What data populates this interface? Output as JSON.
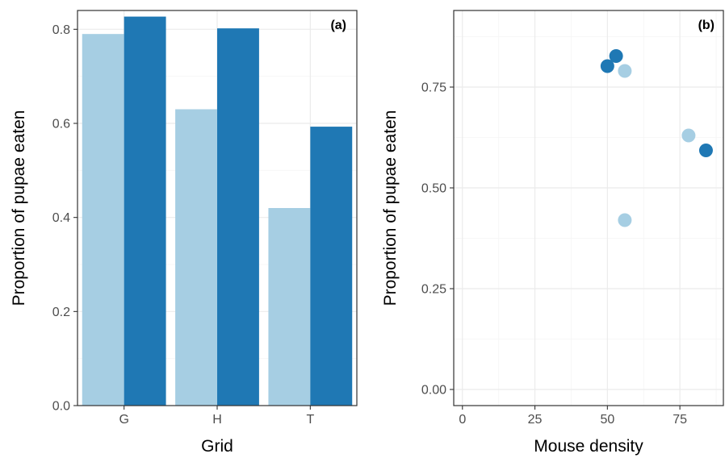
{
  "chart_data": [
    {
      "type": "bar",
      "panel_label": "(a)",
      "xlabel": "Grid",
      "ylabel": "Proportion of pupae eaten",
      "categories": [
        "G",
        "H",
        "T"
      ],
      "series": [
        {
          "values": [
            0.79,
            0.63,
            0.42
          ],
          "color": "#a6cee3"
        },
        {
          "values": [
            0.827,
            0.802,
            0.593
          ],
          "color": "#1f78b4"
        }
      ],
      "ylim": [
        0,
        0.84
      ],
      "yticks": [
        0.0,
        0.2,
        0.4,
        0.6,
        0.8
      ],
      "ytick_labels": [
        "0.0",
        "0.2",
        "0.4",
        "0.6",
        "0.8"
      ],
      "grid": true
    },
    {
      "type": "scatter",
      "panel_label": "(b)",
      "xlabel": "Mouse density",
      "ylabel": "Proportion of pupae eaten",
      "series": [
        {
          "points": [
            [
              56,
              0.79
            ],
            [
              78,
              0.63
            ],
            [
              56,
              0.42
            ]
          ],
          "color": "#a6cee3"
        },
        {
          "points": [
            [
              50,
              0.802
            ],
            [
              53,
              0.827
            ],
            [
              84,
              0.593
            ]
          ],
          "color": "#1f78b4"
        }
      ],
      "xlim": [
        -3,
        90
      ],
      "ylim": [
        -0.04,
        0.94
      ],
      "xticks": [
        0,
        25,
        50,
        75
      ],
      "xtick_labels": [
        "0",
        "25",
        "50",
        "75"
      ],
      "yticks": [
        0.0,
        0.25,
        0.5,
        0.75
      ],
      "ytick_labels": [
        "0.00",
        "0.25",
        "0.50",
        "0.75"
      ],
      "grid": true
    }
  ]
}
